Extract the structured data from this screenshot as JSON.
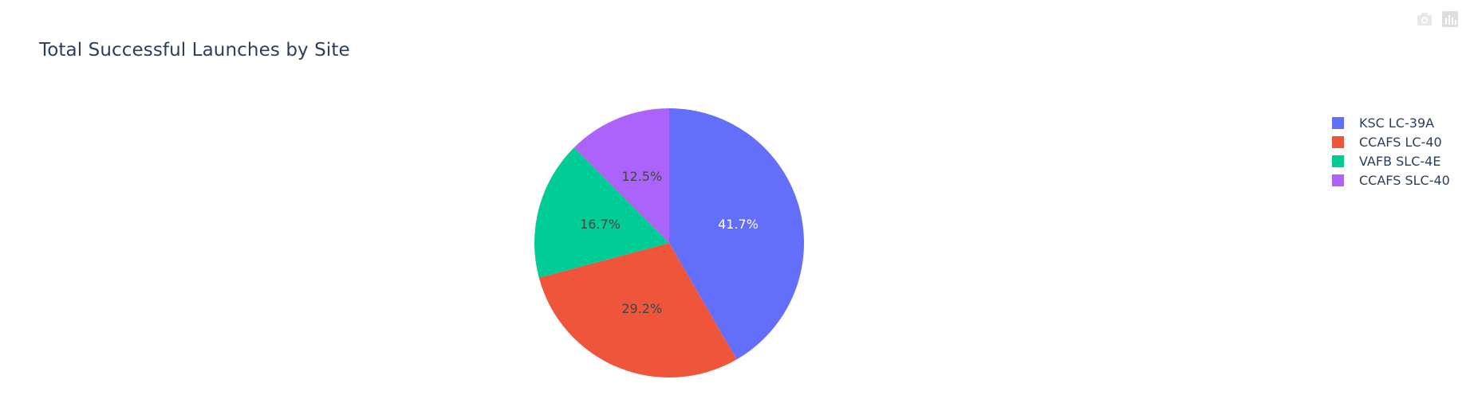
{
  "chart_data": {
    "type": "pie",
    "title": "Total Successful Launches by Site",
    "labels": [
      "KSC LC-39A",
      "CCAFS LC-40",
      "VAFB SLC-4E",
      "CCAFS SLC-40"
    ],
    "values": [
      41.7,
      29.2,
      16.7,
      12.5
    ],
    "value_labels": [
      "41.7%",
      "29.2%",
      "16.7%",
      "12.5%"
    ],
    "colors": [
      "#636efa",
      "#EF553B",
      "#00cc96",
      "#ab63fa"
    ],
    "label_colors": [
      "#ffffff",
      "#444444",
      "#444444",
      "#444444"
    ],
    "legend_position": "right",
    "direction": "clockwise",
    "start": "top"
  },
  "toolbar": {
    "icons": [
      "camera-icon",
      "bar-chart-icon"
    ]
  }
}
